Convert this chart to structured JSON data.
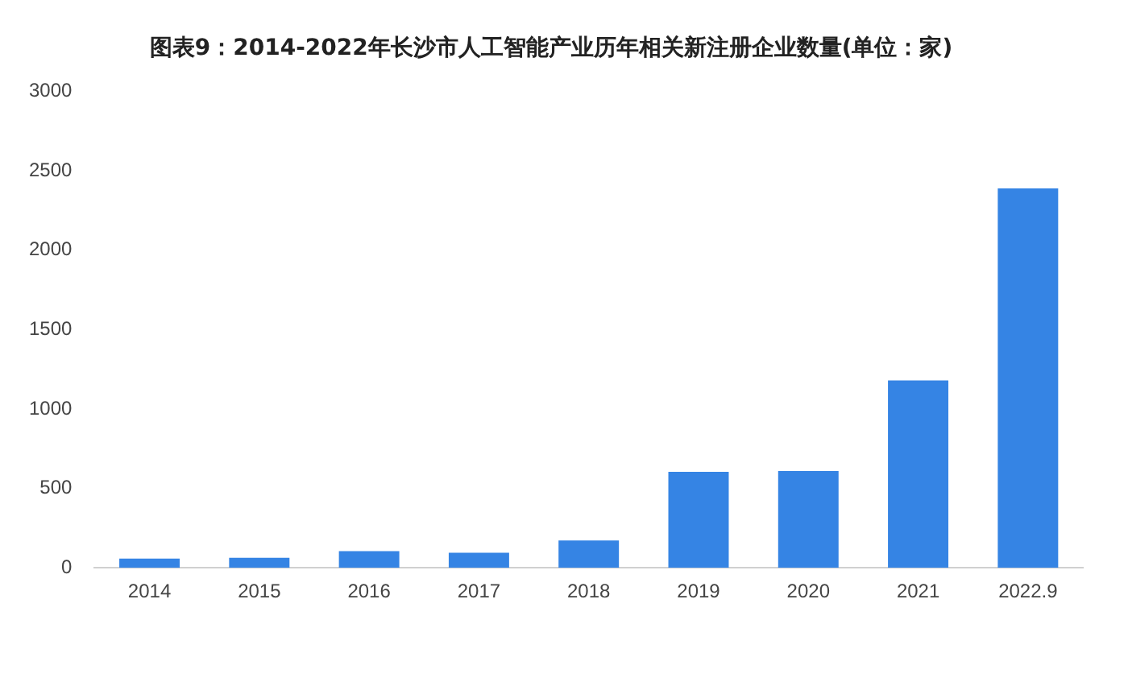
{
  "chart_data": {
    "type": "bar",
    "title": "图表9：2014-2022年长沙市人工智能产业历年相关新注册企业数量(单位：家)",
    "categories": [
      "2014",
      "2015",
      "2016",
      "2017",
      "2018",
      "2019",
      "2020",
      "2021",
      "2022.9"
    ],
    "values": [
      58,
      63,
      105,
      95,
      172,
      604,
      610,
      1180,
      2390
    ],
    "color": "#3584e4",
    "ylim": [
      0,
      3000
    ],
    "yticks": [
      0,
      500,
      1000,
      1500,
      2000,
      2500,
      3000
    ],
    "grid": false
  }
}
